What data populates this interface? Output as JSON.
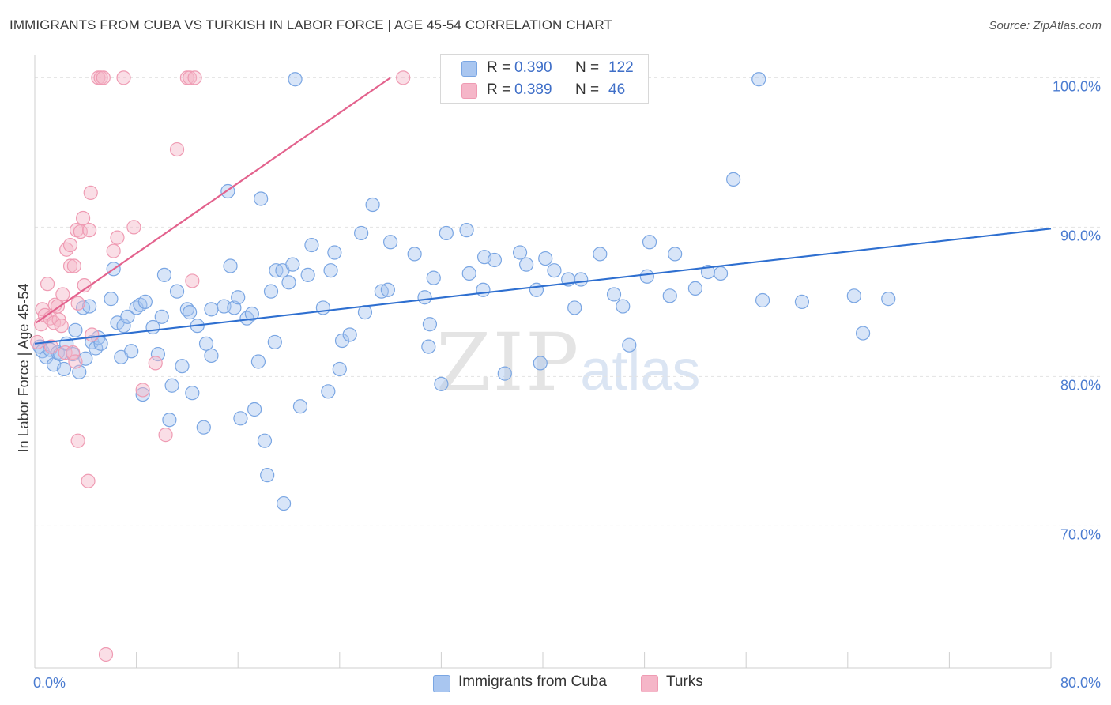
{
  "header": {
    "title": "IMMIGRANTS FROM CUBA VS TURKISH IN LABOR FORCE | AGE 45-54 CORRELATION CHART",
    "source": "Source: ZipAtlas.com"
  },
  "watermark": {
    "zip": "ZIP",
    "atlas": "atlas"
  },
  "legend": {
    "rows": [
      {
        "r_label": "R =",
        "r_value": "0.390",
        "n_label": "N =",
        "n_value": "122",
        "color": "#a9c6f0"
      },
      {
        "r_label": "R =",
        "r_value": "0.389",
        "n_label": "N =",
        "n_value": "46",
        "color": "#f5b6c8"
      }
    ],
    "bottom": [
      {
        "label": "Immigrants from Cuba",
        "color": "#a9c6f0"
      },
      {
        "label": "Turks",
        "color": "#f5b6c8"
      }
    ]
  },
  "chart_data": {
    "type": "scatter",
    "title": "IMMIGRANTS FROM CUBA VS TURKISH IN LABOR FORCE | AGE 45-54 CORRELATION CHART",
    "ylabel": "In Labor Force | Age 45-54",
    "xlabel": "",
    "xlim": [
      0,
      80
    ],
    "ylim": [
      60.5,
      101.5
    ],
    "x_ticks_labels": [
      {
        "value": 0,
        "label": "0.0%"
      },
      {
        "value": 80,
        "label": "80.0%"
      }
    ],
    "y_ticks_labels": [
      {
        "value": 70,
        "label": "70.0%"
      },
      {
        "value": 80,
        "label": "80.0%"
      },
      {
        "value": 90,
        "label": "90.0%"
      },
      {
        "value": 100,
        "label": "100.0%"
      }
    ],
    "grid": true,
    "legend_position": "top-center",
    "series": [
      {
        "name": "Immigrants from Cuba",
        "color": "#7aa6e3",
        "fill": "#a9c6f0",
        "trend": {
          "x": [
            0,
            80
          ],
          "y": [
            82.2,
            89.9
          ],
          "color": "#2e6fd0"
        },
        "points": [
          [
            0.4,
            82.0
          ],
          [
            0.6,
            81.7
          ],
          [
            0.9,
            81.3
          ],
          [
            1.2,
            81.8
          ],
          [
            1.5,
            80.8
          ],
          [
            1.8,
            81.6
          ],
          [
            2.0,
            81.5
          ],
          [
            2.3,
            80.5
          ],
          [
            2.5,
            82.2
          ],
          [
            3.0,
            81.5
          ],
          [
            3.2,
            83.1
          ],
          [
            3.5,
            80.3
          ],
          [
            3.8,
            84.6
          ],
          [
            4.0,
            81.2
          ],
          [
            4.3,
            84.7
          ],
          [
            4.5,
            82.3
          ],
          [
            4.8,
            81.9
          ],
          [
            5.0,
            82.6
          ],
          [
            5.2,
            82.2
          ],
          [
            6.0,
            85.2
          ],
          [
            6.2,
            87.2
          ],
          [
            6.5,
            83.6
          ],
          [
            6.8,
            81.3
          ],
          [
            7.0,
            83.4
          ],
          [
            7.3,
            84.0
          ],
          [
            7.6,
            81.7
          ],
          [
            8.0,
            84.6
          ],
          [
            8.3,
            84.8
          ],
          [
            8.5,
            78.8
          ],
          [
            8.7,
            85.0
          ],
          [
            9.3,
            83.3
          ],
          [
            9.7,
            81.5
          ],
          [
            10.0,
            84.0
          ],
          [
            10.2,
            86.8
          ],
          [
            10.6,
            77.1
          ],
          [
            10.8,
            79.4
          ],
          [
            11.2,
            85.7
          ],
          [
            11.6,
            80.7
          ],
          [
            12.0,
            84.5
          ],
          [
            12.2,
            84.3
          ],
          [
            12.4,
            78.9
          ],
          [
            12.8,
            83.4
          ],
          [
            13.3,
            76.6
          ],
          [
            13.5,
            82.2
          ],
          [
            13.9,
            81.4
          ],
          [
            13.9,
            84.5
          ],
          [
            14.9,
            84.7
          ],
          [
            15.2,
            92.4
          ],
          [
            15.4,
            87.4
          ],
          [
            15.7,
            84.6
          ],
          [
            16.0,
            85.3
          ],
          [
            16.2,
            77.2
          ],
          [
            16.7,
            83.9
          ],
          [
            17.1,
            84.2
          ],
          [
            17.3,
            77.8
          ],
          [
            17.6,
            81.0
          ],
          [
            17.8,
            91.9
          ],
          [
            18.1,
            75.7
          ],
          [
            18.3,
            73.4
          ],
          [
            18.6,
            85.7
          ],
          [
            18.9,
            82.3
          ],
          [
            19.0,
            87.1
          ],
          [
            19.6,
            71.5
          ],
          [
            19.5,
            87.1
          ],
          [
            20.0,
            86.3
          ],
          [
            20.3,
            87.5
          ],
          [
            20.5,
            99.9
          ],
          [
            20.9,
            78.0
          ],
          [
            21.5,
            86.8
          ],
          [
            21.8,
            88.8
          ],
          [
            22.7,
            84.6
          ],
          [
            23.1,
            79.0
          ],
          [
            23.3,
            87.1
          ],
          [
            23.6,
            88.3
          ],
          [
            24.0,
            80.5
          ],
          [
            24.2,
            82.4
          ],
          [
            24.8,
            82.8
          ],
          [
            25.7,
            89.6
          ],
          [
            26.0,
            84.3
          ],
          [
            26.6,
            91.5
          ],
          [
            27.3,
            85.7
          ],
          [
            27.8,
            85.8
          ],
          [
            28.0,
            89.0
          ],
          [
            29.9,
            88.2
          ],
          [
            30.7,
            85.3
          ],
          [
            31.0,
            82.0
          ],
          [
            31.1,
            83.5
          ],
          [
            31.4,
            86.6
          ],
          [
            32.0,
            79.5
          ],
          [
            32.4,
            89.6
          ],
          [
            34.0,
            89.8
          ],
          [
            34.2,
            86.9
          ],
          [
            35.3,
            85.8
          ],
          [
            35.4,
            88.0
          ],
          [
            36.2,
            87.8
          ],
          [
            37.0,
            80.2
          ],
          [
            38.2,
            88.3
          ],
          [
            38.7,
            87.5
          ],
          [
            39.5,
            85.8
          ],
          [
            39.8,
            80.9
          ],
          [
            40.2,
            87.9
          ],
          [
            40.9,
            87.1
          ],
          [
            42.0,
            86.5
          ],
          [
            42.5,
            84.6
          ],
          [
            43.0,
            86.5
          ],
          [
            44.5,
            88.2
          ],
          [
            45.6,
            85.5
          ],
          [
            46.3,
            84.7
          ],
          [
            46.8,
            82.1
          ],
          [
            48.2,
            86.7
          ],
          [
            48.4,
            89.0
          ],
          [
            50.0,
            85.4
          ],
          [
            50.4,
            88.2
          ],
          [
            52.0,
            85.9
          ],
          [
            53.0,
            87.0
          ],
          [
            54.0,
            86.9
          ],
          [
            55.0,
            93.2
          ],
          [
            57.0,
            99.9
          ],
          [
            57.3,
            85.1
          ],
          [
            60.4,
            85.0
          ],
          [
            64.5,
            85.4
          ],
          [
            65.2,
            82.9
          ],
          [
            67.2,
            85.2
          ]
        ]
      },
      {
        "name": "Turks",
        "color": "#ef9bb3",
        "fill": "#f5b6c8",
        "trend": {
          "x": [
            0.1,
            28.0
          ],
          "y": [
            83.6,
            100.0
          ],
          "color": "#e3628d"
        },
        "points": [
          [
            0.2,
            82.3
          ],
          [
            0.5,
            83.5
          ],
          [
            0.6,
            84.5
          ],
          [
            0.8,
            84.1
          ],
          [
            1.0,
            86.2
          ],
          [
            1.2,
            83.9
          ],
          [
            1.3,
            82.0
          ],
          [
            1.5,
            83.6
          ],
          [
            1.6,
            84.8
          ],
          [
            1.8,
            84.7
          ],
          [
            1.9,
            83.8
          ],
          [
            2.1,
            83.4
          ],
          [
            2.2,
            85.5
          ],
          [
            2.4,
            81.6
          ],
          [
            2.5,
            88.5
          ],
          [
            2.8,
            88.8
          ],
          [
            2.8,
            87.4
          ],
          [
            3.0,
            81.6
          ],
          [
            3.1,
            87.4
          ],
          [
            3.2,
            81.0
          ],
          [
            3.3,
            89.8
          ],
          [
            3.4,
            84.9
          ],
          [
            3.4,
            75.7
          ],
          [
            3.6,
            89.7
          ],
          [
            3.8,
            90.6
          ],
          [
            3.9,
            86.1
          ],
          [
            4.2,
            73.0
          ],
          [
            4.3,
            89.8
          ],
          [
            4.4,
            92.3
          ],
          [
            4.5,
            82.8
          ],
          [
            5.0,
            100.0
          ],
          [
            5.2,
            100.0
          ],
          [
            5.4,
            100.0
          ],
          [
            6.2,
            88.4
          ],
          [
            6.5,
            89.3
          ],
          [
            7.0,
            100.0
          ],
          [
            7.8,
            90.0
          ],
          [
            8.5,
            79.1
          ],
          [
            9.5,
            80.9
          ],
          [
            10.3,
            76.1
          ],
          [
            11.2,
            95.2
          ],
          [
            12.0,
            100.0
          ],
          [
            12.2,
            100.0
          ],
          [
            12.4,
            86.4
          ],
          [
            12.6,
            100.0
          ],
          [
            29.0,
            100.0
          ],
          [
            5.6,
            61.4
          ]
        ]
      }
    ]
  }
}
